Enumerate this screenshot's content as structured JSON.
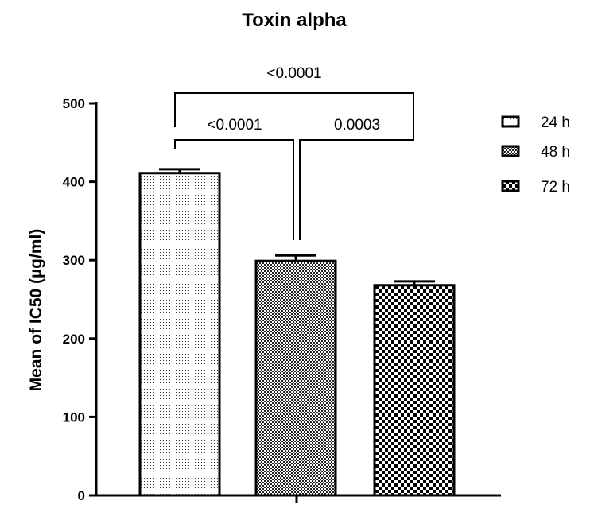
{
  "chart_data": {
    "type": "bar",
    "title": "Toxin alpha",
    "xlabel": "",
    "ylabel": "Mean of IC50 (µg/ml)",
    "ylim": [
      0,
      500
    ],
    "yticks": [
      0,
      100,
      200,
      300,
      400,
      500
    ],
    "series": [
      {
        "name": "24 h",
        "value": 411,
        "error": 5,
        "pattern": "fine-dots"
      },
      {
        "name": "48 h",
        "value": 299,
        "error": 7,
        "pattern": "checker-medium"
      },
      {
        "name": "72 h",
        "value": 268,
        "error": 5,
        "pattern": "checker-coarse"
      }
    ],
    "comparisons": [
      {
        "label": "<0.0001",
        "from": "24 h",
        "to": "48 h"
      },
      {
        "label": "0.0003",
        "from": "48 h",
        "to": "72 h"
      },
      {
        "label": "<0.0001",
        "from": "24 h",
        "to": "72 h"
      }
    ],
    "legend_position": "right",
    "grid": false
  }
}
